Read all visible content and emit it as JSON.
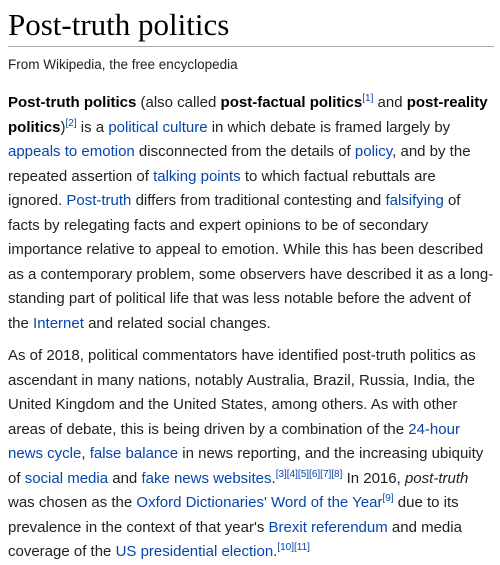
{
  "title": "Post-truth politics",
  "tagline": "From Wikipedia, the free encyclopedia",
  "link_color": "#0645ad",
  "p1": {
    "s1": "Post-truth politics",
    "s2": " (also called ",
    "s3": "post-factual politics",
    "r1": "[1]",
    "s4": " and ",
    "s5": "post-reality politics",
    "s6": ")",
    "r2": "[2]",
    "s7": " is a ",
    "l_political_culture": "political culture",
    "s8": " in which debate is framed largely by ",
    "l_appeals": "appeals to emotion",
    "s9": " disconnected from the details of ",
    "l_policy": "policy",
    "s10": ", and by the repeated assertion of ",
    "l_talking_points": "talking points",
    "s11": " to which factual rebuttals are ignored. ",
    "l_post_truth": "Post-truth",
    "s12": " differs from traditional contesting and ",
    "l_falsifying": "falsifying",
    "s13": " of facts by relegating facts and expert opinions to be of secondary importance relative to appeal to emotion. While this has been described as a contemporary problem, some observers have described it as a long-standing part of political life that was less notable before the advent of the ",
    "l_internet": "Internet",
    "s14": " and related social changes."
  },
  "p2": {
    "s1": "As of 2018, political commentators have identified post-truth politics as ascendant in many nations, notably Australia, Brazil, Russia, India, the United Kingdom and the United States, among others. As with other areas of debate, this is being driven by a combination of the ",
    "l_news_cycle": "24-hour news cycle",
    "s2": ", ",
    "l_false_balance": "false balance",
    "s3": " in news reporting, and the increasing ubiquity of ",
    "l_social_media": "social media",
    "s4": " and ",
    "l_fake_news": "fake news websites",
    "s5": ".",
    "r1": "[3][4][5][6][7][8]",
    "s6": " In 2016, ",
    "i1": "post-truth",
    "s7": " was chosen as the ",
    "l_oxford": "Oxford Dictionaries' Word of the Year",
    "r2": "[9]",
    "s8": " due to its prevalence in the context of that year's ",
    "l_brexit": "Brexit referendum",
    "s9": " and media coverage of the ",
    "l_us_election": "US presidential election",
    "s10": ".",
    "r3": "[10][11]"
  }
}
